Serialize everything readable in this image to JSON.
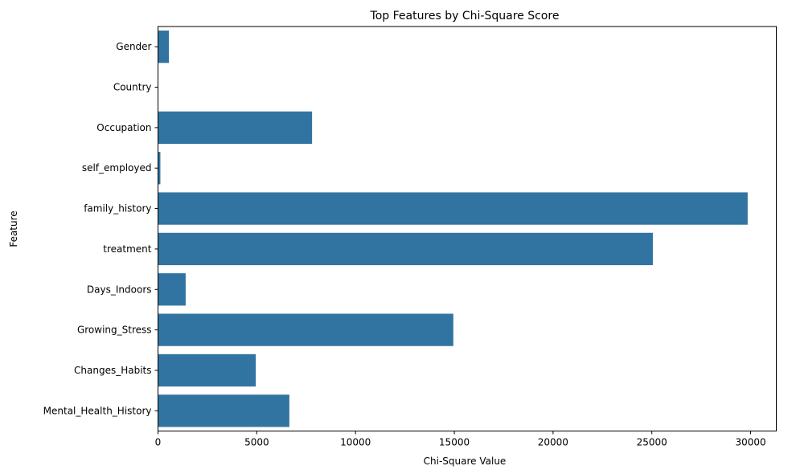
{
  "chart_data": {
    "type": "bar",
    "orientation": "horizontal",
    "title": "Top Features by Chi-Square Score",
    "xlabel": "Chi-Square Value",
    "ylabel": "Feature",
    "categories": [
      "Gender",
      "Country",
      "Occupation",
      "self_employed",
      "family_history",
      "treatment",
      "Days_Indoors",
      "Growing_Stress",
      "Changes_Habits",
      "Mental_Health_History"
    ],
    "values": [
      550,
      0,
      7800,
      120,
      29850,
      25050,
      1400,
      14950,
      4950,
      6650
    ],
    "xlim": [
      0,
      31300
    ],
    "xticks": [
      0,
      5000,
      10000,
      15000,
      20000,
      25000,
      30000
    ],
    "xtick_labels": [
      "0",
      "5000",
      "10000",
      "15000",
      "20000",
      "25000",
      "30000"
    ],
    "grid": false,
    "bar_color": "#3274a1"
  }
}
